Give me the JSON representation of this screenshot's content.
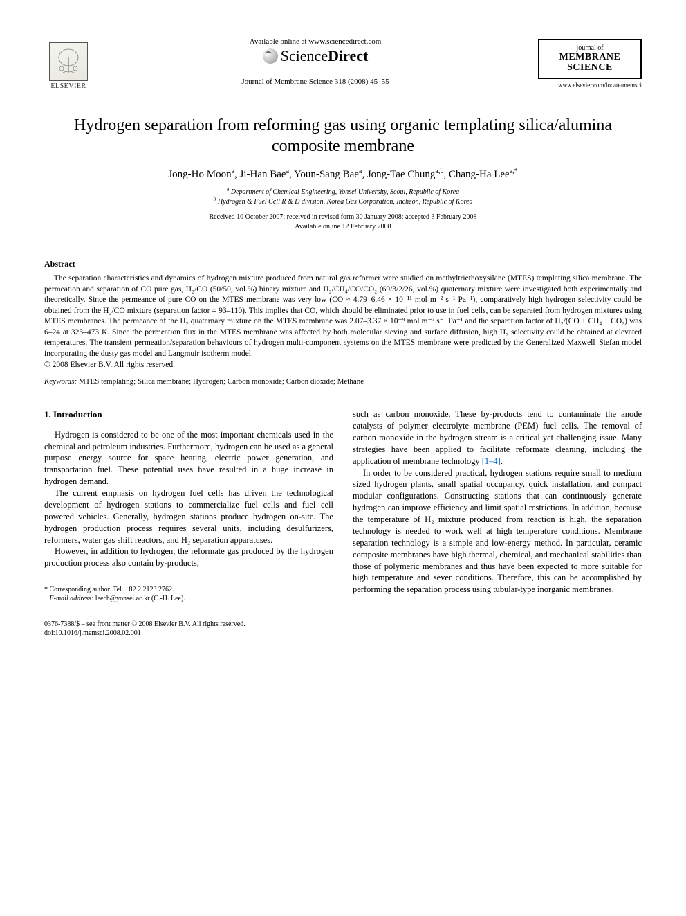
{
  "header": {
    "elsevier_label": "ELSEVIER",
    "available_online": "Available online at www.sciencedirect.com",
    "sciencedirect_prefix": "Science",
    "sciencedirect_suffix": "Direct",
    "journal_ref": "Journal of Membrane Science 318 (2008) 45–55",
    "journal_logo_small": "journal of",
    "journal_logo_big1": "MEMBRANE",
    "journal_logo_big2": "SCIENCE",
    "journal_url": "www.elsevier.com/locate/memsci"
  },
  "title": "Hydrogen separation from reforming gas using organic templating silica/alumina composite membrane",
  "authors_html": "Jong-Ho Moon<sup>a</sup>, Ji-Han Bae<sup>a</sup>, Youn-Sang Bae<sup>a</sup>, Jong-Tae Chung<sup>a,b</sup>, Chang-Ha Lee<sup>a,*</sup>",
  "affiliations": {
    "a": "Department of Chemical Engineering, Yonsei University, Seoul, Republic of Korea",
    "b": "Hydrogen & Fuel Cell R & D division, Korea Gas Corporation, Incheon, Republic of Korea"
  },
  "dates": {
    "received": "Received 10 October 2007; received in revised form 30 January 2008; accepted 3 February 2008",
    "available": "Available online 12 February 2008"
  },
  "abstract_heading": "Abstract",
  "abstract_para": "The separation characteristics and dynamics of hydrogen mixture produced from natural gas reformer were studied on methyltriethoxysilane (MTES) templating silica membrane. The permeation and separation of CO pure gas, H₂/CO (50/50, vol.%) binary mixture and H₂/CH₄/CO/CO₂ (69/3/2/26, vol.%) quaternary mixture were investigated both experimentally and theoretically. Since the permeance of pure CO on the MTES membrane was very low (CO ≈ 4.79–6.46 × 10⁻¹¹ mol m⁻² s⁻¹ Pa⁻¹), comparatively high hydrogen selectivity could be obtained from the H₂/CO mixture (separation factor = 93–110). This implies that CO, which should be eliminated prior to use in fuel cells, can be separated from hydrogen mixtures using MTES membranes. The permeance of the H₂ quaternary mixture on the MTES membrane was 2.07–3.37 × 10⁻⁹ mol m⁻² s⁻¹ Pa⁻¹ and the separation factor of H₂/(CO + CH₄ + CO₂) was 6–24 at 323–473 K. Since the permeation flux in the MTES membrane was affected by both molecular sieving and surface diffusion, high H₂ selectivity could be obtained at elevated temperatures. The transient permeation/separation behaviours of hydrogen multi-component systems on the MTES membrane were predicted by the Generalized Maxwell–Stefan model incorporating the dusty gas model and Langmuir isotherm model.",
  "copyright": "© 2008 Elsevier B.V. All rights reserved.",
  "keywords_label": "Keywords:",
  "keywords": "MTES templating; Silica membrane; Hydrogen; Carbon monoxide; Carbon dioxide; Methane",
  "section1_heading": "1. Introduction",
  "col_left": {
    "p1": "Hydrogen is considered to be one of the most important chemicals used in the chemical and petroleum industries. Furthermore, hydrogen can be used as a general purpose energy source for space heating, electric power generation, and transportation fuel. These potential uses have resulted in a huge increase in hydrogen demand.",
    "p2": "The current emphasis on hydrogen fuel cells has driven the technological development of hydrogen stations to commercialize fuel cells and fuel cell powered vehicles. Generally, hydrogen stations produce hydrogen on-site. The hydrogen production process requires several units, including desulfurizers, reformers, water gas shift reactors, and H₂ separation apparatuses.",
    "p3": "However, in addition to hydrogen, the reformate gas produced by the hydrogen production process also contain by-products,"
  },
  "col_right": {
    "p1_pre": "such as carbon monoxide. These by-products tend to contaminate the anode catalysts of polymer electrolyte membrane (PEM) fuel cells. The removal of carbon monoxide in the hydrogen stream is a critical yet challenging issue. Many strategies have been applied to facilitate reformate cleaning, including the application of membrane technology ",
    "p1_ref": "[1–4]",
    "p1_post": ".",
    "p2": "In order to be considered practical, hydrogen stations require small to medium sized hydrogen plants, small spatial occupancy, quick installation, and compact modular configurations. Constructing stations that can continuously generate hydrogen can improve efficiency and limit spatial restrictions. In addition, because the temperature of H₂ mixture produced from reaction is high, the separation technology is needed to work well at high temperature conditions. Membrane separation technology is a simple and low-energy method. In particular, ceramic composite membranes have high thermal, chemical, and mechanical stabilities than those of polymeric membranes and thus have been expected to more suitable for high temperature and sever conditions. Therefore, this can be accomplished by performing the separation process using tubular-type inorganic membranes,"
  },
  "footnote": {
    "corresponding": "* Corresponding author. Tel. +82 2 2123 2762.",
    "email_label": "E-mail address:",
    "email": "leech@yonsei.ac.kr",
    "email_author": "(C.-H. Lee)."
  },
  "footer": {
    "line1": "0376-7388/$ – see front matter © 2008 Elsevier B.V. All rights reserved.",
    "line2": "doi:10.1016/j.memsci.2008.02.001"
  }
}
